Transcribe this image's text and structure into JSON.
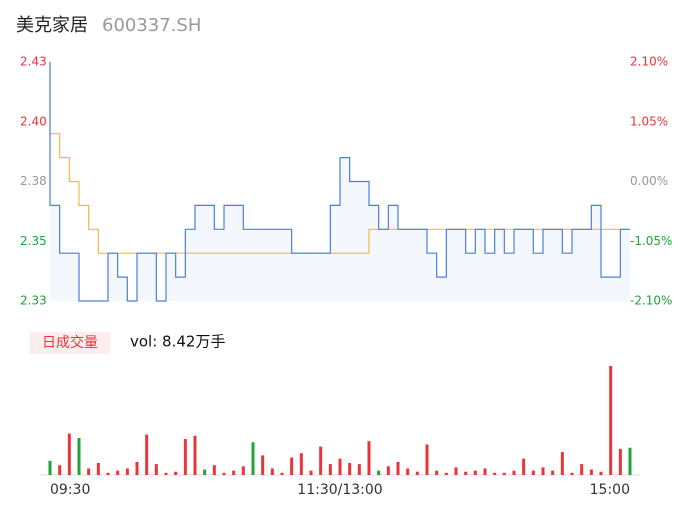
{
  "chart_data": {
    "type": "intraday",
    "title": "美克家居",
    "subtitle": "600337.SH",
    "volume_tab": "日成交量",
    "volume_text": "vol: 8.42万手",
    "x": [
      "09:30",
      null,
      null,
      null,
      null,
      null,
      null,
      null,
      null,
      null,
      null,
      null,
      null,
      null,
      null,
      null,
      null,
      null,
      null,
      null,
      null,
      null,
      null,
      null,
      null,
      null,
      null,
      null,
      null,
      null,
      "11:30/13:00",
      null,
      null,
      null,
      null,
      null,
      null,
      null,
      null,
      null,
      null,
      null,
      null,
      null,
      null,
      null,
      null,
      null,
      null,
      null,
      null,
      null,
      null,
      null,
      null,
      null,
      null,
      null,
      null,
      null,
      "15:00"
    ],
    "price": {
      "color": "#4a7fe0",
      "values": [
        2.43,
        2.37,
        2.35,
        2.35,
        2.33,
        2.33,
        2.33,
        2.35,
        2.34,
        2.33,
        2.35,
        2.35,
        2.33,
        2.35,
        2.34,
        2.36,
        2.37,
        2.37,
        2.36,
        2.37,
        2.37,
        2.36,
        2.36,
        2.36,
        2.36,
        2.36,
        2.35,
        2.35,
        2.35,
        2.35,
        2.37,
        2.39,
        2.38,
        2.38,
        2.37,
        2.36,
        2.37,
        2.36,
        2.36,
        2.36,
        2.35,
        2.34,
        2.36,
        2.36,
        2.35,
        2.36,
        2.35,
        2.36,
        2.35,
        2.36,
        2.36,
        2.35,
        2.36,
        2.36,
        2.35,
        2.36,
        2.36,
        2.37,
        2.34,
        2.34,
        2.36
      ]
    },
    "average": {
      "color": "#f5b942",
      "values": [
        2.43,
        2.4,
        2.39,
        2.38,
        2.37,
        2.36,
        2.35,
        2.35,
        2.35,
        2.35,
        2.35,
        2.35,
        2.35,
        2.35,
        2.35,
        2.35,
        2.35,
        2.35,
        2.35,
        2.35,
        2.35,
        2.35,
        2.35,
        2.35,
        2.35,
        2.35,
        2.35,
        2.35,
        2.35,
        2.35,
        2.35,
        2.35,
        2.35,
        2.35,
        2.36,
        2.36,
        2.36,
        2.36,
        2.36,
        2.36,
        2.36,
        2.36,
        2.36,
        2.36,
        2.36,
        2.36,
        2.36,
        2.36,
        2.36,
        2.36,
        2.36,
        2.36,
        2.36,
        2.36,
        2.36,
        2.36,
        2.36,
        2.36,
        2.36,
        2.36,
        2.36
      ]
    },
    "volume": {
      "values": [
        130,
        90,
        380,
        340,
        60,
        110,
        20,
        40,
        60,
        120,
        370,
        100,
        20,
        30,
        330,
        360,
        50,
        90,
        20,
        40,
        80,
        300,
        180,
        60,
        20,
        160,
        200,
        40,
        260,
        100,
        150,
        110,
        100,
        310,
        40,
        80,
        120,
        60,
        30,
        280,
        40,
        20,
        70,
        30,
        40,
        60,
        20,
        20,
        40,
        150,
        40,
        70,
        40,
        210,
        20,
        100,
        50,
        30,
        1000,
        240,
        250
      ],
      "colors": [
        "#21a336",
        "#e8353b",
        "#e8353b",
        "#21a336",
        "#e8353b",
        "#e8353b",
        "#e8353b",
        "#e8353b",
        "#e8353b",
        "#e8353b",
        "#e8353b",
        "#e8353b",
        "#e8353b",
        "#e8353b",
        "#e8353b",
        "#e8353b",
        "#21a336",
        "#e8353b",
        "#e8353b",
        "#e8353b",
        "#e8353b",
        "#21a336",
        "#e8353b",
        "#e8353b",
        "#e8353b",
        "#e8353b",
        "#e8353b",
        "#e8353b",
        "#e8353b",
        "#e8353b",
        "#e8353b",
        "#e8353b",
        "#e8353b",
        "#e8353b",
        "#21a336",
        "#e8353b",
        "#e8353b",
        "#e8353b",
        "#e8353b",
        "#e8353b",
        "#e8353b",
        "#e8353b",
        "#e8353b",
        "#e8353b",
        "#e8353b",
        "#e8353b",
        "#e8353b",
        "#e8353b",
        "#e8353b",
        "#e8353b",
        "#e8353b",
        "#e8353b",
        "#e8353b",
        "#e8353b",
        "#e8353b",
        "#e8353b",
        "#e8353b",
        "#e8353b",
        "#e8353b",
        "#e8353b",
        "#21a336"
      ]
    },
    "vol_ylim": [
      0,
      1000
    ],
    "ylim": [
      2.33,
      2.43
    ],
    "yticks": [
      {
        "value": 2.43,
        "label": "2.43"
      },
      {
        "value": 2.405,
        "label": "2.40"
      },
      {
        "value": 2.38,
        "label": "2.38"
      },
      {
        "value": 2.355,
        "label": "2.35"
      },
      {
        "value": 2.33,
        "label": "2.33"
      }
    ],
    "y2lim": [
      -2.1,
      2.1
    ],
    "y2ticks": [
      {
        "value": 2.1,
        "label": "2.10%"
      },
      {
        "value": 1.05,
        "label": "1.05%"
      },
      {
        "value": 0,
        "label": "0.00%"
      },
      {
        "value": -1.05,
        "label": "-1.05%"
      },
      {
        "value": -2.1,
        "label": "-2.10%"
      }
    ]
  }
}
